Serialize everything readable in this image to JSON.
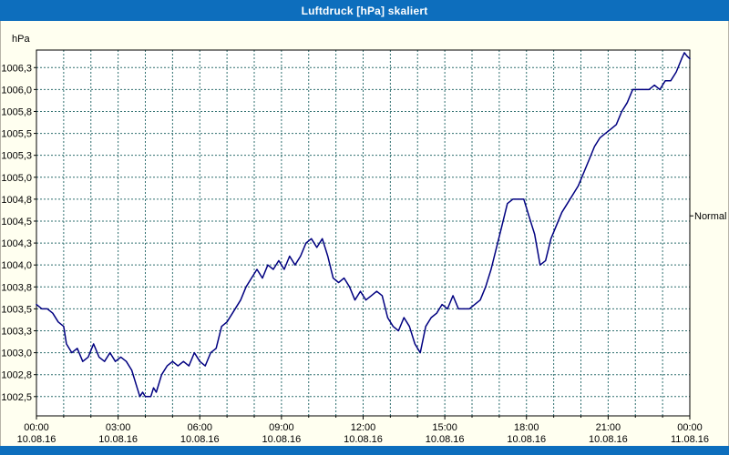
{
  "window": {
    "title": "Luftdruck [hPa] skaliert"
  },
  "colors": {
    "title_bar": "#0d6ebd",
    "title_text": "#ffffff",
    "background": "#fffff0",
    "plot_background": "#ffffff",
    "grid": "#2f6f6f",
    "border": "#000000",
    "axis_text": "#000000",
    "line": "#000080"
  },
  "chart_data": {
    "type": "line",
    "title": "Luftdruck [hPa] skaliert",
    "y_unit_label": "hPa",
    "xlabel": "",
    "ylabel": "hPa",
    "xlim": [
      0,
      24
    ],
    "ylim": [
      1002.28,
      1006.45
    ],
    "grid": true,
    "legend_position": "none",
    "x_ticks": [
      {
        "t": 0,
        "time": "00:00",
        "date": "10.08.16"
      },
      {
        "t": 3,
        "time": "03:00",
        "date": "10.08.16"
      },
      {
        "t": 6,
        "time": "06:00",
        "date": "10.08.16"
      },
      {
        "t": 9,
        "time": "09:00",
        "date": "10.08.16"
      },
      {
        "t": 12,
        "time": "12:00",
        "date": "10.08.16"
      },
      {
        "t": 15,
        "time": "15:00",
        "date": "10.08.16"
      },
      {
        "t": 18,
        "time": "18:00",
        "date": "10.08.16"
      },
      {
        "t": 21,
        "time": "21:00",
        "date": "10.08.16"
      },
      {
        "t": 24,
        "time": "00:00",
        "date": "11.08.16"
      }
    ],
    "y_ticks": [
      {
        "label": "1006,3",
        "value": 1006.25
      },
      {
        "label": "1006,0",
        "value": 1006.0
      },
      {
        "label": "1005,8",
        "value": 1005.75
      },
      {
        "label": "1005,5",
        "value": 1005.5
      },
      {
        "label": "1005,3",
        "value": 1005.25
      },
      {
        "label": "1005,0",
        "value": 1005.0
      },
      {
        "label": "1004,8",
        "value": 1004.75
      },
      {
        "label": "1004,5",
        "value": 1004.5
      },
      {
        "label": "1004,3",
        "value": 1004.25
      },
      {
        "label": "1004,0",
        "value": 1004.0
      },
      {
        "label": "1003,8",
        "value": 1003.75
      },
      {
        "label": "1003,5",
        "value": 1003.5
      },
      {
        "label": "1003,3",
        "value": 1003.25
      },
      {
        "label": "1003,0",
        "value": 1003.0
      },
      {
        "label": "1002,8",
        "value": 1002.75
      },
      {
        "label": "1002,5",
        "value": 1002.5
      }
    ],
    "normal_marker": {
      "label": "Normal",
      "value": 1004.56
    },
    "series": [
      {
        "name": "Luftdruck",
        "color": "#000080",
        "points": [
          [
            0.0,
            1003.55
          ],
          [
            0.2,
            1003.5
          ],
          [
            0.4,
            1003.5
          ],
          [
            0.6,
            1003.45
          ],
          [
            0.8,
            1003.35
          ],
          [
            1.0,
            1003.3
          ],
          [
            1.1,
            1003.1
          ],
          [
            1.3,
            1003.0
          ],
          [
            1.5,
            1003.05
          ],
          [
            1.7,
            1002.9
          ],
          [
            1.9,
            1002.95
          ],
          [
            2.1,
            1003.1
          ],
          [
            2.3,
            1002.95
          ],
          [
            2.5,
            1002.9
          ],
          [
            2.7,
            1003.0
          ],
          [
            2.9,
            1002.9
          ],
          [
            3.1,
            1002.95
          ],
          [
            3.3,
            1002.9
          ],
          [
            3.5,
            1002.8
          ],
          [
            3.7,
            1002.6
          ],
          [
            3.8,
            1002.5
          ],
          [
            3.9,
            1002.55
          ],
          [
            4.0,
            1002.5
          ],
          [
            4.2,
            1002.5
          ],
          [
            4.3,
            1002.6
          ],
          [
            4.4,
            1002.55
          ],
          [
            4.6,
            1002.75
          ],
          [
            4.8,
            1002.85
          ],
          [
            5.0,
            1002.9
          ],
          [
            5.2,
            1002.85
          ],
          [
            5.4,
            1002.9
          ],
          [
            5.6,
            1002.85
          ],
          [
            5.8,
            1003.0
          ],
          [
            6.0,
            1002.9
          ],
          [
            6.2,
            1002.85
          ],
          [
            6.4,
            1003.0
          ],
          [
            6.6,
            1003.05
          ],
          [
            6.8,
            1003.3
          ],
          [
            7.0,
            1003.35
          ],
          [
            7.2,
            1003.45
          ],
          [
            7.5,
            1003.6
          ],
          [
            7.7,
            1003.75
          ],
          [
            7.9,
            1003.85
          ],
          [
            8.1,
            1003.95
          ],
          [
            8.3,
            1003.85
          ],
          [
            8.5,
            1004.0
          ],
          [
            8.7,
            1003.95
          ],
          [
            8.9,
            1004.05
          ],
          [
            9.1,
            1003.95
          ],
          [
            9.3,
            1004.1
          ],
          [
            9.5,
            1004.0
          ],
          [
            9.7,
            1004.1
          ],
          [
            9.9,
            1004.25
          ],
          [
            10.1,
            1004.3
          ],
          [
            10.3,
            1004.2
          ],
          [
            10.5,
            1004.3
          ],
          [
            10.7,
            1004.1
          ],
          [
            10.9,
            1003.85
          ],
          [
            11.1,
            1003.8
          ],
          [
            11.3,
            1003.85
          ],
          [
            11.5,
            1003.75
          ],
          [
            11.7,
            1003.6
          ],
          [
            11.9,
            1003.7
          ],
          [
            12.1,
            1003.6
          ],
          [
            12.3,
            1003.65
          ],
          [
            12.5,
            1003.7
          ],
          [
            12.7,
            1003.65
          ],
          [
            12.9,
            1003.4
          ],
          [
            13.1,
            1003.3
          ],
          [
            13.3,
            1003.25
          ],
          [
            13.5,
            1003.4
          ],
          [
            13.7,
            1003.3
          ],
          [
            13.9,
            1003.1
          ],
          [
            14.1,
            1003.0
          ],
          [
            14.3,
            1003.3
          ],
          [
            14.5,
            1003.4
          ],
          [
            14.7,
            1003.45
          ],
          [
            14.9,
            1003.55
          ],
          [
            15.1,
            1003.5
          ],
          [
            15.3,
            1003.65
          ],
          [
            15.5,
            1003.5
          ],
          [
            15.7,
            1003.5
          ],
          [
            15.9,
            1003.5
          ],
          [
            16.1,
            1003.55
          ],
          [
            16.3,
            1003.6
          ],
          [
            16.5,
            1003.75
          ],
          [
            16.7,
            1003.95
          ],
          [
            16.9,
            1004.2
          ],
          [
            17.1,
            1004.45
          ],
          [
            17.3,
            1004.7
          ],
          [
            17.5,
            1004.75
          ],
          [
            17.7,
            1004.75
          ],
          [
            17.9,
            1004.75
          ],
          [
            18.1,
            1004.55
          ],
          [
            18.3,
            1004.35
          ],
          [
            18.5,
            1004.0
          ],
          [
            18.7,
            1004.05
          ],
          [
            18.9,
            1004.3
          ],
          [
            19.1,
            1004.45
          ],
          [
            19.3,
            1004.6
          ],
          [
            19.5,
            1004.7
          ],
          [
            19.7,
            1004.8
          ],
          [
            19.9,
            1004.9
          ],
          [
            20.1,
            1005.05
          ],
          [
            20.3,
            1005.2
          ],
          [
            20.5,
            1005.35
          ],
          [
            20.7,
            1005.45
          ],
          [
            20.9,
            1005.5
          ],
          [
            21.1,
            1005.55
          ],
          [
            21.3,
            1005.6
          ],
          [
            21.5,
            1005.75
          ],
          [
            21.7,
            1005.85
          ],
          [
            21.9,
            1006.0
          ],
          [
            22.1,
            1006.0
          ],
          [
            22.3,
            1006.0
          ],
          [
            22.5,
            1006.0
          ],
          [
            22.7,
            1006.05
          ],
          [
            22.9,
            1006.0
          ],
          [
            23.1,
            1006.1
          ],
          [
            23.3,
            1006.1
          ],
          [
            23.5,
            1006.2
          ],
          [
            23.7,
            1006.35
          ],
          [
            23.8,
            1006.42
          ],
          [
            23.9,
            1006.38
          ],
          [
            24.0,
            1006.35
          ]
        ]
      }
    ]
  }
}
